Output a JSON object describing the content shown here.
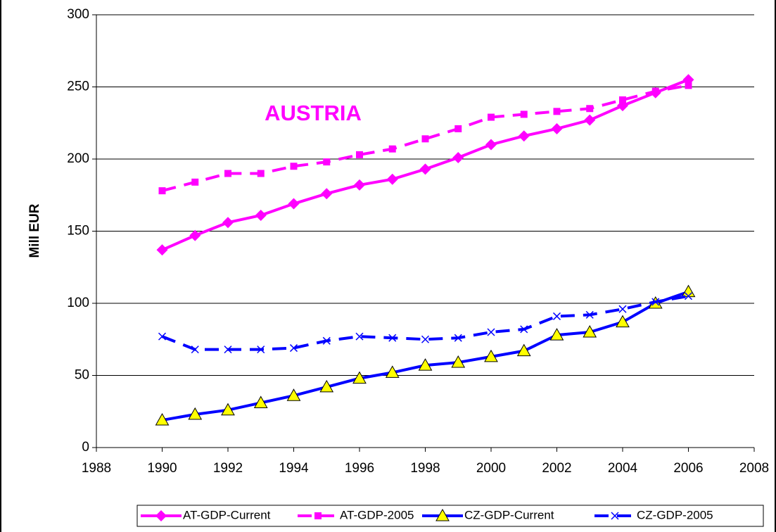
{
  "chart_data": {
    "type": "line",
    "ylabel": "Mill EUR",
    "annotation": "AUSTRIA",
    "annotation_color": "#ff00ff",
    "x": [
      1990,
      1991,
      1992,
      1993,
      1994,
      1995,
      1996,
      1997,
      1998,
      1999,
      2000,
      2001,
      2002,
      2003,
      2004,
      2005,
      2006
    ],
    "xlim": [
      1988,
      2008
    ],
    "xticks": [
      1988,
      1990,
      1992,
      1994,
      1996,
      1998,
      2000,
      2002,
      2004,
      2006,
      2008
    ],
    "ylim": [
      0,
      300
    ],
    "yticks": [
      0,
      50,
      100,
      150,
      200,
      250,
      300
    ],
    "grid": true,
    "legend": "bottom",
    "series": [
      {
        "name": "AT-GDP-Current",
        "color": "#ff00ff",
        "marker": "diamond",
        "dashed": false,
        "values": [
          137,
          147,
          156,
          161,
          169,
          176,
          182,
          186,
          193,
          201,
          210,
          216,
          221,
          227,
          237,
          246,
          255
        ]
      },
      {
        "name": "AT-GDP-2005",
        "color": "#ff00ff",
        "marker": "square",
        "dashed": true,
        "values": [
          178,
          184,
          190,
          190,
          195,
          198,
          203,
          207,
          214,
          221,
          229,
          231,
          233,
          235,
          241,
          247,
          251
        ]
      },
      {
        "name": "CZ-GDP-Current",
        "color": "#0000ff",
        "marker": "triangle",
        "dashed": false,
        "values": [
          19,
          23,
          26,
          31,
          36,
          42,
          48,
          52,
          57,
          59,
          63,
          67,
          78,
          80,
          87,
          100,
          108
        ]
      },
      {
        "name": "CZ-GDP-2005",
        "color": "#0000ff",
        "marker": "x",
        "dashed": true,
        "values": [
          77,
          68,
          68,
          68,
          69,
          74,
          77,
          76,
          75,
          76,
          80,
          82,
          91,
          92,
          96,
          101,
          105
        ]
      }
    ]
  }
}
